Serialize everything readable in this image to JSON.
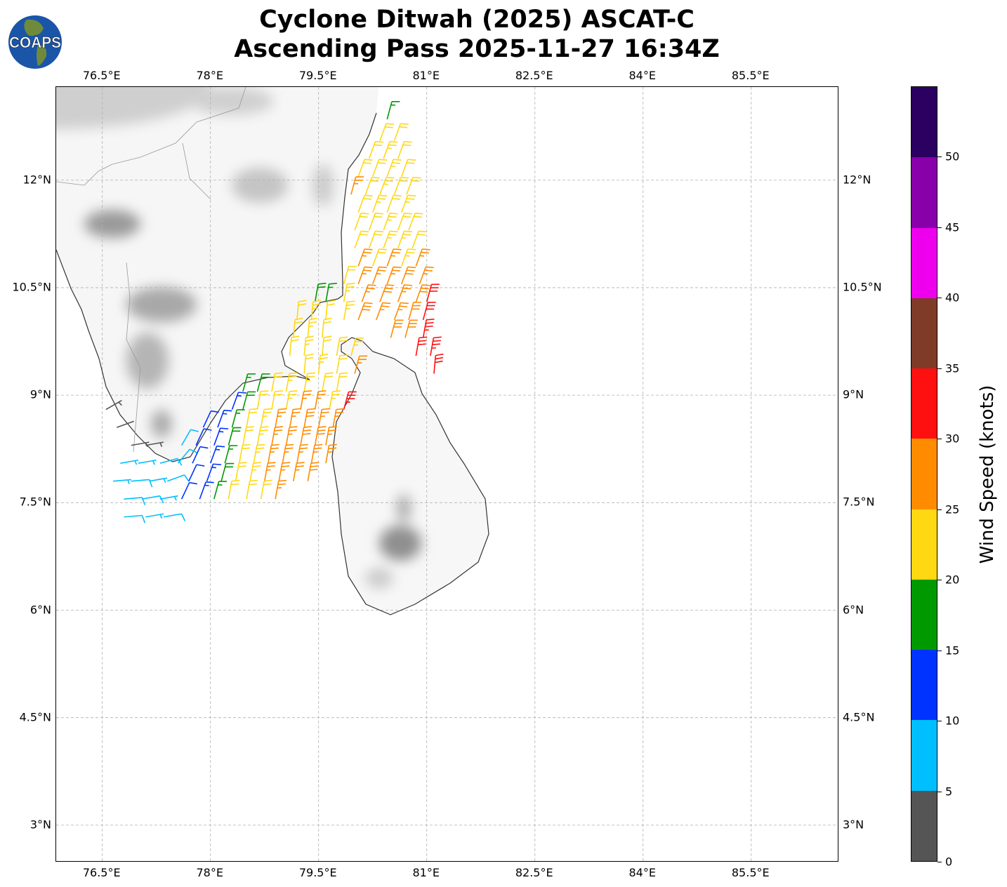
{
  "title": {
    "line1": "Cyclone Ditwah (2025) ASCAT-C",
    "line2": "Ascending Pass 2025-11-27 16:34Z"
  },
  "logo": {
    "text": "COAPS"
  },
  "chart_data": {
    "type": "wind-barb-map",
    "extent": {
      "lon": [
        75.86,
        86.72
      ],
      "lat": [
        2.48,
        13.3
      ]
    },
    "lon_ticks": [
      76.5,
      78,
      79.5,
      81,
      82.5,
      84,
      85.5
    ],
    "lon_tick_labels": [
      "76.5°E",
      "78°E",
      "79.5°E",
      "81°E",
      "82.5°E",
      "84°E",
      "85.5°E"
    ],
    "lat_ticks": [
      12,
      10.5,
      9,
      7.5,
      6,
      4.5,
      3
    ],
    "lat_tick_labels": [
      "12°N",
      "10.5°N",
      "9°N",
      "7.5°N",
      "6°N",
      "4.5°N",
      "3°N"
    ],
    "grid": true,
    "colorbar": {
      "label": "Wind Speed (knots)",
      "bounds": [
        0,
        5,
        10,
        15,
        20,
        25,
        30,
        35,
        40,
        45,
        50,
        55
      ],
      "tick_values": [
        0,
        5,
        10,
        15,
        20,
        25,
        30,
        35,
        40,
        45,
        50
      ],
      "tick_labels": [
        "0",
        "5",
        "10",
        "15",
        "20",
        "25",
        "30",
        "35",
        "40",
        "45",
        "50"
      ],
      "colors": [
        "#555555",
        "#00bfff",
        "#0033ff",
        "#009900",
        "#ffd814",
        "#ff8c00",
        "#ff1010",
        "#7f3a28",
        "#ee00ee",
        "#8800aa",
        "#2a0060"
      ]
    },
    "barb_rows": [
      {
        "lat": 12.85,
        "barbs": [
          [
            80.45,
            17,
            15
          ]
        ]
      },
      {
        "lat": 12.55,
        "barbs": [
          [
            80.35,
            22,
            20
          ],
          [
            80.55,
            21,
            20
          ]
        ]
      },
      {
        "lat": 12.3,
        "barbs": [
          [
            80.2,
            22,
            20
          ],
          [
            80.4,
            23,
            20
          ],
          [
            80.6,
            22,
            20
          ]
        ]
      },
      {
        "lat": 12.05,
        "barbs": [
          [
            80.05,
            21,
            20
          ],
          [
            80.25,
            22,
            20
          ],
          [
            80.45,
            23,
            20
          ],
          [
            80.65,
            22,
            20
          ]
        ]
      },
      {
        "lat": 11.8,
        "barbs": [
          [
            79.95,
            26,
            15
          ],
          [
            80.15,
            22,
            20
          ],
          [
            80.35,
            23,
            20
          ],
          [
            80.55,
            22,
            20
          ],
          [
            80.72,
            22,
            20
          ]
        ]
      },
      {
        "lat": 11.55,
        "barbs": [
          [
            80.05,
            22,
            20
          ],
          [
            80.25,
            23,
            20
          ],
          [
            80.45,
            22,
            20
          ],
          [
            80.65,
            23,
            20
          ]
        ]
      },
      {
        "lat": 11.3,
        "barbs": [
          [
            80.0,
            22,
            20
          ],
          [
            80.2,
            22,
            20
          ],
          [
            80.4,
            23,
            20
          ],
          [
            80.6,
            22,
            20
          ],
          [
            80.75,
            21,
            20
          ]
        ]
      },
      {
        "lat": 11.05,
        "barbs": [
          [
            80.0,
            21,
            20
          ],
          [
            80.2,
            22,
            20
          ],
          [
            80.4,
            23,
            20
          ],
          [
            80.6,
            24,
            20
          ],
          [
            80.8,
            22,
            20
          ]
        ]
      },
      {
        "lat": 10.8,
        "barbs": [
          [
            80.05,
            26,
            20
          ],
          [
            80.25,
            22,
            20
          ],
          [
            80.45,
            26,
            20
          ],
          [
            80.65,
            24,
            20
          ],
          [
            80.85,
            27,
            20
          ]
        ]
      },
      {
        "lat": 10.55,
        "barbs": [
          [
            79.85,
            22,
            15
          ],
          [
            80.05,
            27,
            20
          ],
          [
            80.25,
            26,
            20
          ],
          [
            80.45,
            27,
            20
          ],
          [
            80.65,
            28,
            20
          ],
          [
            80.9,
            27,
            20
          ]
        ]
      },
      {
        "lat": 10.3,
        "barbs": [
          [
            79.45,
            18,
            10
          ],
          [
            79.6,
            17,
            10
          ],
          [
            79.85,
            23,
            10
          ],
          [
            80.1,
            27,
            20
          ],
          [
            80.35,
            28,
            20
          ],
          [
            80.6,
            26,
            20
          ],
          [
            80.85,
            28,
            20
          ],
          [
            81.0,
            31,
            15
          ]
        ]
      },
      {
        "lat": 10.05,
        "barbs": [
          [
            79.2,
            22,
            5
          ],
          [
            79.4,
            23,
            5
          ],
          [
            79.6,
            22,
            5
          ],
          [
            79.85,
            23,
            10
          ],
          [
            80.05,
            28,
            20
          ],
          [
            80.3,
            27,
            20
          ],
          [
            80.55,
            27,
            20
          ],
          [
            80.75,
            28,
            15
          ],
          [
            80.95,
            32,
            15
          ]
        ]
      },
      {
        "lat": 9.8,
        "barbs": [
          [
            79.15,
            22,
            5
          ],
          [
            79.35,
            23,
            5
          ],
          [
            79.55,
            22,
            5
          ],
          [
            80.5,
            28,
            15
          ],
          [
            80.7,
            29,
            15
          ],
          [
            80.95,
            33,
            10
          ]
        ]
      },
      {
        "lat": 9.55,
        "barbs": [
          [
            79.1,
            22,
            5
          ],
          [
            79.3,
            23,
            5
          ],
          [
            79.55,
            22,
            5
          ],
          [
            79.75,
            21,
            10
          ],
          [
            79.95,
            24,
            15
          ],
          [
            80.85,
            32,
            10
          ],
          [
            81.05,
            33,
            10
          ]
        ]
      },
      {
        "lat": 9.3,
        "barbs": [
          [
            79.3,
            21,
            5
          ],
          [
            79.5,
            23,
            5
          ],
          [
            79.75,
            22,
            10
          ],
          [
            80.0,
            27,
            15
          ],
          [
            81.1,
            32,
            5
          ]
        ]
      },
      {
        "lat": 9.05,
        "barbs": [
          [
            78.45,
            17,
            15
          ],
          [
            78.65,
            18,
            15
          ],
          [
            78.85,
            22,
            10
          ],
          [
            79.05,
            23,
            10
          ],
          [
            79.3,
            24,
            10
          ],
          [
            79.55,
            22,
            10
          ],
          [
            79.75,
            22,
            10
          ]
        ]
      },
      {
        "lat": 8.8,
        "barbs": [
          [
            76.55,
            3,
            60
          ],
          [
            78.3,
            14,
            20
          ],
          [
            78.45,
            18,
            15
          ],
          [
            78.65,
            21,
            10
          ],
          [
            78.85,
            22,
            10
          ],
          [
            79.05,
            24,
            10
          ],
          [
            79.25,
            26,
            10
          ],
          [
            79.45,
            27,
            10
          ],
          [
            79.65,
            24,
            10
          ],
          [
            79.85,
            33,
            15
          ]
        ]
      },
      {
        "lat": 8.55,
        "barbs": [
          [
            76.7,
            2,
            70
          ],
          [
            77.9,
            12,
            25
          ],
          [
            78.1,
            13,
            20
          ],
          [
            78.3,
            17,
            15
          ],
          [
            78.5,
            21,
            10
          ],
          [
            78.7,
            23,
            10
          ],
          [
            78.9,
            27,
            10
          ],
          [
            79.1,
            27,
            10
          ],
          [
            79.3,
            28,
            10
          ],
          [
            79.5,
            27,
            10
          ],
          [
            79.7,
            27,
            10
          ]
        ]
      },
      {
        "lat": 8.3,
        "barbs": [
          [
            76.9,
            4,
            80
          ],
          [
            77.1,
            3,
            80
          ],
          [
            77.6,
            9,
            30
          ],
          [
            77.8,
            11,
            25
          ],
          [
            78.05,
            13,
            20
          ],
          [
            78.25,
            18,
            15
          ],
          [
            78.45,
            22,
            10
          ],
          [
            78.65,
            23,
            10
          ],
          [
            78.85,
            27,
            10
          ],
          [
            79.05,
            27,
            10
          ],
          [
            79.25,
            28,
            10
          ],
          [
            79.45,
            28,
            10
          ],
          [
            79.6,
            27,
            10
          ]
        ]
      },
      {
        "lat": 8.05,
        "barbs": [
          [
            76.75,
            7,
            80
          ],
          [
            77.0,
            7,
            80
          ],
          [
            77.3,
            8,
            75
          ],
          [
            77.55,
            9,
            40
          ],
          [
            77.75,
            11,
            25
          ],
          [
            78.0,
            13,
            20
          ],
          [
            78.2,
            17,
            15
          ],
          [
            78.4,
            22,
            10
          ],
          [
            78.6,
            23,
            10
          ],
          [
            78.8,
            26,
            10
          ],
          [
            79.0,
            27,
            10
          ],
          [
            79.2,
            27,
            10
          ],
          [
            79.4,
            26,
            10
          ],
          [
            79.6,
            27,
            10
          ]
        ]
      },
      {
        "lat": 7.8,
        "barbs": [
          [
            76.65,
            7,
            85
          ],
          [
            76.9,
            8,
            85
          ],
          [
            77.15,
            7,
            80
          ],
          [
            77.4,
            8,
            70
          ],
          [
            77.7,
            12,
            25
          ],
          [
            77.95,
            14,
            20
          ],
          [
            78.15,
            18,
            15
          ],
          [
            78.35,
            22,
            10
          ],
          [
            78.55,
            23,
            10
          ],
          [
            78.75,
            27,
            10
          ],
          [
            78.95,
            26,
            10
          ],
          [
            79.15,
            27,
            10
          ],
          [
            79.35,
            28,
            10
          ]
        ]
      },
      {
        "lat": 7.55,
        "barbs": [
          [
            76.8,
            8,
            85
          ],
          [
            77.05,
            8,
            80
          ],
          [
            77.3,
            7,
            80
          ],
          [
            77.6,
            11,
            25
          ],
          [
            77.85,
            13,
            20
          ],
          [
            78.05,
            17,
            15
          ],
          [
            78.25,
            21,
            10
          ],
          [
            78.5,
            22,
            10
          ],
          [
            78.7,
            22,
            10
          ],
          [
            78.9,
            27,
            10
          ]
        ]
      },
      {
        "lat": 7.3,
        "barbs": [
          [
            76.8,
            8,
            85
          ],
          [
            77.1,
            7,
            80
          ],
          [
            77.35,
            8,
            80
          ]
        ]
      }
    ]
  }
}
